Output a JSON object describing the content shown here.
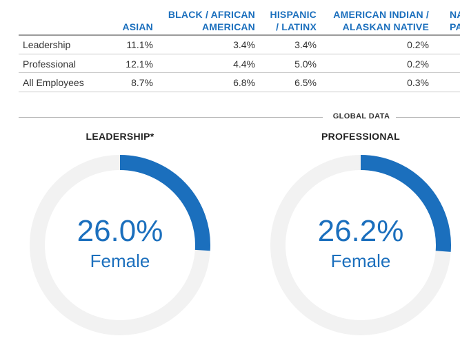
{
  "table": {
    "headers": [
      {
        "lines": [
          "ASIAN"
        ]
      },
      {
        "lines": [
          "BLACK / AFRICAN",
          "AMERICAN"
        ]
      },
      {
        "lines": [
          "HISPANIC",
          "/ LATINX"
        ]
      },
      {
        "lines": [
          "AMERICAN INDIAN /",
          "ALASKAN NATIVE"
        ]
      },
      {
        "lines": [
          "NAT",
          "PA"
        ]
      }
    ],
    "rows": [
      {
        "label": "Leadership",
        "asian": "11.1%",
        "black": "3.4%",
        "hispanic": "3.4%",
        "american_indian": "0.2%"
      },
      {
        "label": "Professional",
        "asian": "12.1%",
        "black": "4.4%",
        "hispanic": "5.0%",
        "american_indian": "0.2%"
      },
      {
        "label": "All Employees",
        "asian": "8.7%",
        "black": "6.8%",
        "hispanic": "6.5%",
        "american_indian": "0.3%"
      }
    ]
  },
  "section_label": "GLOBAL DATA",
  "colors": {
    "accent": "#1b6fbd",
    "ring_track": "#f2f2f2"
  },
  "chart_data": [
    {
      "type": "pie",
      "title": "LEADERSHIP*",
      "value_label": "26.0%",
      "sub_label": "Female",
      "categories": [
        "Female",
        "Other"
      ],
      "values": [
        26.0,
        74.0
      ]
    },
    {
      "type": "pie",
      "title": "PROFESSIONAL",
      "value_label": "26.2%",
      "sub_label": "Female",
      "categories": [
        "Female",
        "Other"
      ],
      "values": [
        26.2,
        73.8
      ]
    }
  ]
}
